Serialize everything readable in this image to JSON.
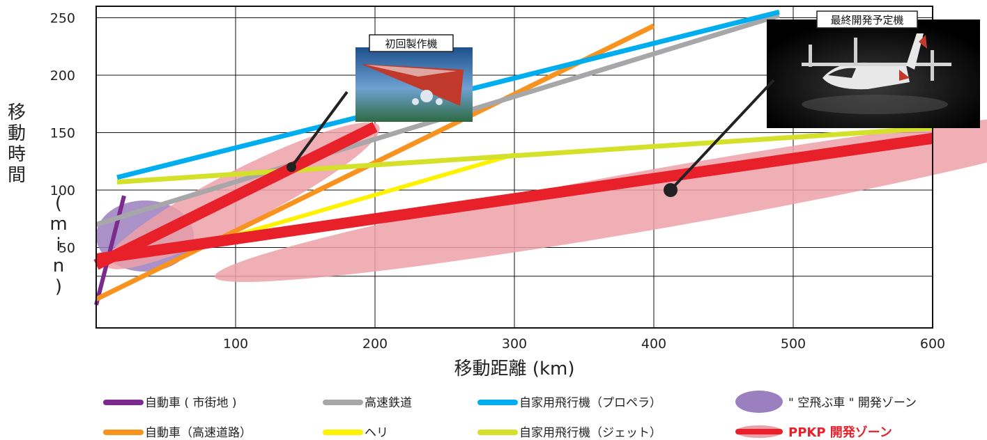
{
  "colors": {
    "car_city": "#7b2a8e",
    "car_highway": "#f7931e",
    "rail": "#a7a7a9",
    "heli": "#fff200",
    "prop_plane": "#00aeef",
    "jet_plane": "#d4e02a",
    "ppkp": "#e8202a",
    "ppkp_zone": "#eda0a8",
    "flying_car_zone": "#9b7fbf",
    "grid": "#111111"
  },
  "chart_data": {
    "type": "line",
    "xlabel": "移動距離 (km)",
    "ylabel": "移動時間 (min)",
    "xlim": [
      0,
      600
    ],
    "ylim": [
      -20,
      260
    ],
    "xticks": [
      100,
      200,
      300,
      400,
      500,
      600
    ],
    "yticks": [
      50,
      100,
      150,
      200,
      250
    ],
    "grid": true,
    "series": [
      {
        "key": "car_city",
        "name": "自動車 ( 市街地 )",
        "width": 6,
        "x": [
          0,
          20
        ],
        "y": [
          0,
          95
        ]
      },
      {
        "key": "car_highway",
        "name": "自動車（高速道路）",
        "width": 7,
        "x": [
          0,
          400
        ],
        "y": [
          5,
          243
        ]
      },
      {
        "key": "rail",
        "name": "高速鉄道",
        "width": 7,
        "x": [
          0,
          490
        ],
        "y": [
          70,
          252
        ]
      },
      {
        "key": "heli",
        "name": "ヘリ",
        "width": 6,
        "x": [
          70,
          300
        ],
        "y": [
          50,
          131
        ]
      },
      {
        "key": "prop_plane",
        "name": "自家用飛行機（プロペラ）",
        "width": 7,
        "x": [
          15,
          490
        ],
        "y": [
          111,
          255
        ]
      },
      {
        "key": "jet_plane",
        "name": "自家用飛行機（ジェット）",
        "width": 7,
        "x": [
          15,
          600
        ],
        "y": [
          107,
          154
        ]
      },
      {
        "key": "ppkp",
        "name": "PPKP 開発ゾーン",
        "width": 16,
        "x": [
          0,
          600
        ],
        "y": [
          40,
          145
        ]
      },
      {
        "key": "ppkp",
        "name": "",
        "width": 16,
        "x": [
          0,
          200
        ],
        "y": [
          35,
          155
        ]
      }
    ],
    "zones": [
      {
        "key": "flying_car_zone",
        "name": "\" 空飛ぶ車 \" 開発ゾーン",
        "cx": 35,
        "cy": 60,
        "rx": 35,
        "ry": 31,
        "rotate": 0
      },
      {
        "key": "ppkp_zone",
        "name": "PPKP 開発ゾーン",
        "cx": 105,
        "cy": 95,
        "rx": 110,
        "ry": 23,
        "rotate": -27
      },
      {
        "key": "ppkp_zone",
        "name": "PPKP 開発ゾーン",
        "cx": 410,
        "cy": 94,
        "rx": 330,
        "ry": 26,
        "rotate": -10
      }
    ],
    "callouts": [
      {
        "label": "初回製作機",
        "x": 140,
        "y": 120
      },
      {
        "label": "最終開発予定機",
        "x": 412,
        "y": 100
      }
    ]
  },
  "legend": [
    {
      "key": "car_city",
      "label": "自動車 ( 市街地 )",
      "kind": "line"
    },
    {
      "key": "rail",
      "label": "高速鉄道",
      "kind": "line"
    },
    {
      "key": "prop_plane",
      "label": "自家用飛行機（プロペラ）",
      "kind": "line"
    },
    {
      "key": "flying_car_zone",
      "label": "\" 空飛ぶ車 \" 開発ゾーン",
      "kind": "ellipse"
    },
    {
      "key": "car_highway",
      "label": "自動車（高速道路）",
      "kind": "line"
    },
    {
      "key": "heli",
      "label": "ヘリ",
      "kind": "line"
    },
    {
      "key": "jet_plane",
      "label": "自家用飛行機（ジェット）",
      "kind": "line"
    },
    {
      "key": "ppkp",
      "label": "PPKP 開発ゾーン",
      "kind": "ppkp"
    }
  ]
}
